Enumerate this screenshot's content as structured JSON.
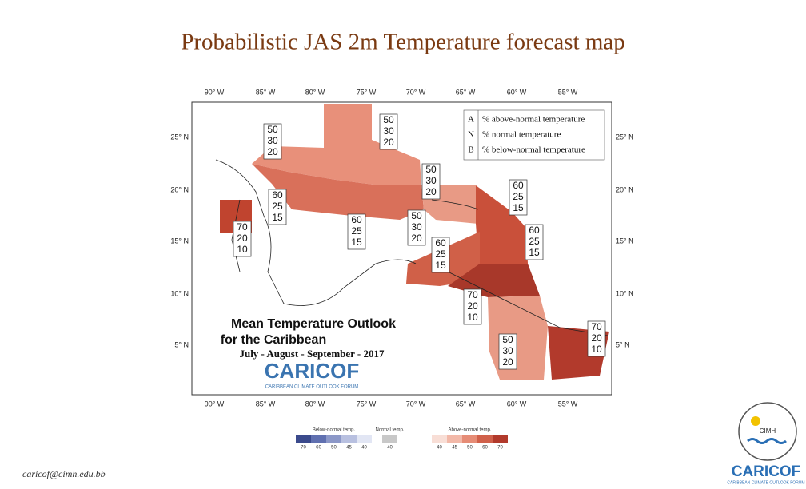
{
  "title": "Probabilistic JAS 2m Temperature forecast map",
  "map": {
    "top_longitudes": [
      "90° W",
      "85° W",
      "80° W",
      "75° W",
      "70° W",
      "65° W",
      "60° W",
      "55° W"
    ],
    "bottom_longitudes": [
      "90° W",
      "85° W",
      "80° W",
      "75° W",
      "70° W",
      "65° W",
      "60° W",
      "55° W"
    ],
    "left_latitudes": [
      "25° N",
      "20° N",
      "15° N",
      "10° N",
      "5° N"
    ],
    "right_latitudes": [
      "25° N",
      "20° N",
      "15° N",
      "10° N",
      "5° N"
    ],
    "legend": {
      "rows": [
        {
          "letter": "A",
          "text": "% above-normal temperature"
        },
        {
          "letter": "N",
          "text": "% normal temperature"
        },
        {
          "letter": "B",
          "text": "% below-normal temperature"
        }
      ]
    },
    "outlook": {
      "heading": "Mean Temperature Outlook",
      "subheading": "for the Caribbean",
      "period": "July - August - September - 2017",
      "logo": "CARICOF",
      "logo_subtitle": "CARIBBEAN CLIMATE OUTLOOK FORUM"
    },
    "forecast_boxes": [
      {
        "above": 50,
        "normal": 30,
        "below": 20
      },
      {
        "above": 50,
        "normal": 30,
        "below": 20
      },
      {
        "above": 50,
        "normal": 30,
        "below": 20
      },
      {
        "above": 60,
        "normal": 25,
        "below": 15
      },
      {
        "above": 60,
        "normal": 25,
        "below": 15
      },
      {
        "above": 60,
        "normal": 25,
        "below": 15
      },
      {
        "above": 50,
        "normal": 30,
        "below": 20
      },
      {
        "above": 60,
        "normal": 25,
        "below": 15
      },
      {
        "above": 60,
        "normal": 25,
        "below": 15
      },
      {
        "above": 70,
        "normal": 20,
        "below": 10
      },
      {
        "above": 70,
        "normal": 20,
        "below": 10
      },
      {
        "above": 50,
        "normal": 30,
        "below": 20
      },
      {
        "above": 70,
        "normal": 20,
        "below": 10
      }
    ]
  },
  "colorbar": {
    "below": {
      "label": "Below-normal temp.",
      "ticks": [
        70,
        60,
        50,
        45,
        40
      ]
    },
    "normal": {
      "label": "Normal temp.",
      "ticks": [
        40
      ]
    },
    "above": {
      "label": "Above-normal temp.",
      "ticks": [
        40,
        45,
        50,
        60,
        70
      ]
    }
  },
  "footer": {
    "email": "caricof@cimh.edu.bb"
  },
  "logo": {
    "cimh": "CIMH",
    "name": "CARICOF",
    "subtitle": "CARIBBEAN CLIMATE OUTLOOK FORUM"
  }
}
